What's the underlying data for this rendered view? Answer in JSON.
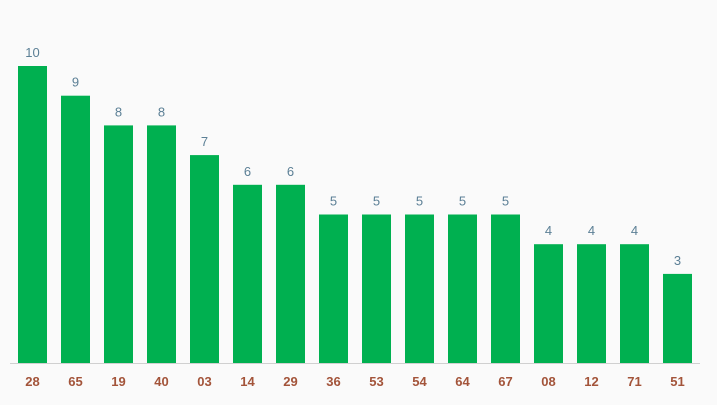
{
  "chart_data": {
    "type": "bar",
    "categories": [
      "28",
      "65",
      "19",
      "40",
      "03",
      "14",
      "29",
      "36",
      "53",
      "54",
      "64",
      "67",
      "08",
      "12",
      "71",
      "51"
    ],
    "values": [
      10,
      9,
      8,
      8,
      7,
      6,
      6,
      5,
      5,
      5,
      5,
      5,
      4,
      4,
      4,
      3
    ],
    "color": "#00b050"
  }
}
